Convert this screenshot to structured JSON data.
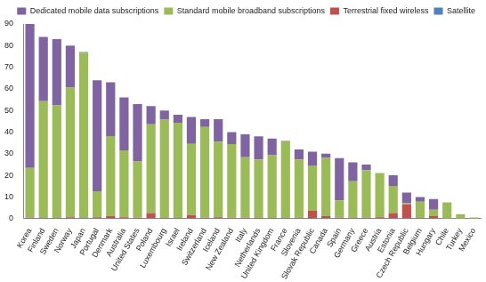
{
  "chart_data": {
    "type": "bar",
    "stacked": true,
    "grid": false,
    "legend": "top-right",
    "categories": [
      "Korea",
      "Finland",
      "Sweden",
      "Norway",
      "Japan",
      "Portugal",
      "Denmark",
      "Australia",
      "United States",
      "Poland",
      "Luxembourg",
      "Israel",
      "Ireland",
      "Switzerland",
      "Iceland",
      "New Zealand",
      "Italy",
      "Netherlands",
      "United Kingdom",
      "France",
      "Slovenia",
      "Slovak Republic",
      "Canada",
      "Spain",
      "Germany",
      "Greece",
      "Austria",
      "Estonia",
      "Czech Republic",
      "Belgium",
      "Hungary",
      "Chile",
      "Turkey",
      "Mexico"
    ],
    "series": [
      {
        "name": "Satellite",
        "color": "#4f81bd",
        "values": [
          0.1,
          0.1,
          0.1,
          0.1,
          0.1,
          0.1,
          0.1,
          0.1,
          0.1,
          0.1,
          0.1,
          0.1,
          0.1,
          0.1,
          0.1,
          0.1,
          0.1,
          0.1,
          0.1,
          0.1,
          0.1,
          0.1,
          0.1,
          0.1,
          0.1,
          0.1,
          0.1,
          0.1,
          0.1,
          0.1,
          0.1,
          0,
          0,
          0
        ]
      },
      {
        "name": "Terrestrial fixed wireless",
        "color": "#c0504d",
        "values": [
          0.3,
          0.2,
          0.2,
          0.5,
          0.1,
          0.5,
          1,
          0.5,
          0.3,
          2.5,
          0.2,
          0.2,
          1.5,
          0.3,
          0.5,
          0.3,
          0.3,
          0.2,
          0.2,
          0.2,
          0.3,
          3.5,
          1,
          0.3,
          0.2,
          0.3,
          0.5,
          2.5,
          6.5,
          0.2,
          1,
          0,
          0,
          0
        ]
      },
      {
        "name": "Standard mobile broadband subscriptions",
        "color": "#9bbb59",
        "values": [
          23,
          54,
          52,
          60,
          76.5,
          12,
          37,
          31,
          26,
          41,
          45.5,
          44,
          33,
          42,
          35,
          34,
          28,
          27,
          29,
          35.5,
          27,
          21,
          27,
          8,
          17,
          22,
          20.5,
          12.5,
          0.5,
          7.5,
          3,
          7.5,
          2,
          0.5
        ]
      },
      {
        "name": "Dedicated mobile data subscriptions",
        "color": "#8064a2",
        "values": [
          66.6,
          29.7,
          30.7,
          19.4,
          0.3,
          51.4,
          24.9,
          24.4,
          26.6,
          8.4,
          4.2,
          3.7,
          12.4,
          3.6,
          10.4,
          5.6,
          10.6,
          10.7,
          7.7,
          0.2,
          4.6,
          6.4,
          1.9,
          19.6,
          8.7,
          2.6,
          0,
          4.9,
          4.9,
          2.2,
          4.9,
          0,
          0,
          0
        ]
      }
    ],
    "ylim": [
      0,
      90
    ],
    "yticks": [
      0,
      10,
      20,
      30,
      40,
      50,
      60,
      70,
      80,
      90
    ]
  }
}
